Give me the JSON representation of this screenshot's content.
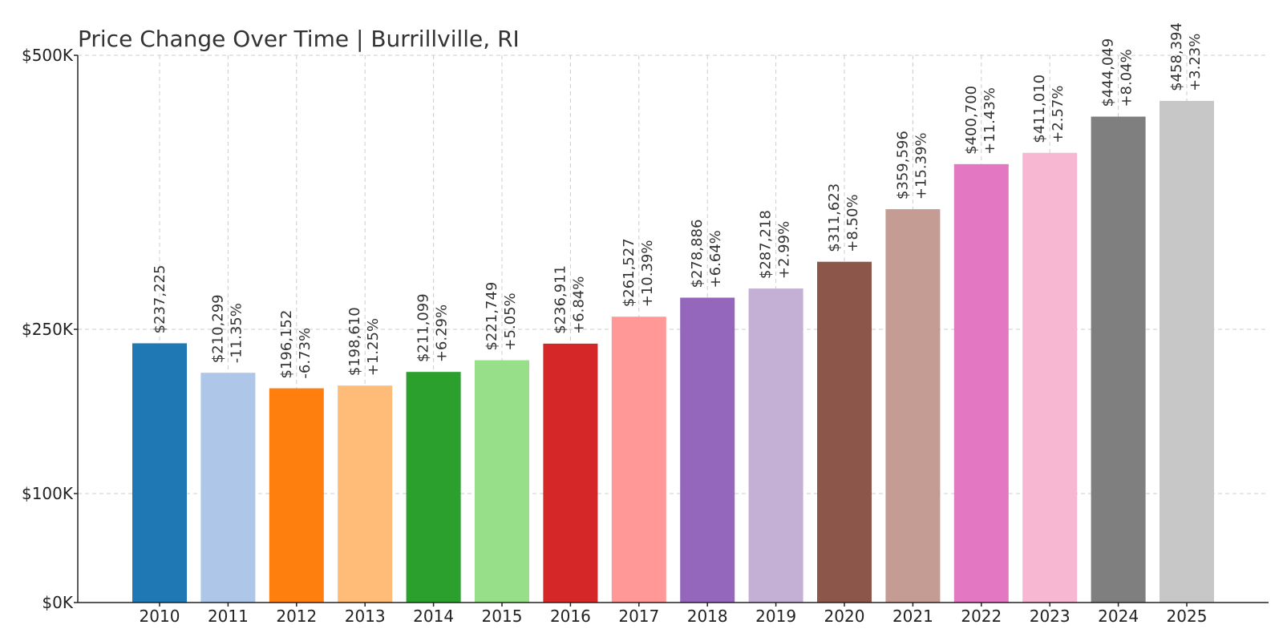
{
  "chart_data": {
    "type": "bar",
    "title": "Price Change Over Time | Burrillville, RI",
    "xlabel": "",
    "ylabel": "",
    "categories": [
      "2010",
      "2011",
      "2012",
      "2013",
      "2014",
      "2015",
      "2016",
      "2017",
      "2018",
      "2019",
      "2020",
      "2021",
      "2022",
      "2023",
      "2024",
      "2025"
    ],
    "values": [
      237225,
      210299,
      196152,
      198610,
      211099,
      221749,
      236911,
      261527,
      278886,
      287218,
      311623,
      359596,
      400700,
      411010,
      444049,
      458394
    ],
    "value_labels": [
      "$237,225",
      "$210,299",
      "$196,152",
      "$198,610",
      "$211,099",
      "$221,749",
      "$236,911",
      "$261,527",
      "$278,886",
      "$287,218",
      "$311,623",
      "$359,596",
      "$400,700",
      "$411,010",
      "$444,049",
      "$458,394"
    ],
    "change_labels": [
      "",
      "-11.35%",
      "-6.73%",
      "+1.25%",
      "+6.29%",
      "+5.05%",
      "+6.84%",
      "+10.39%",
      "+6.64%",
      "+2.99%",
      "+8.50%",
      "+15.39%",
      "+11.43%",
      "+2.57%",
      "+8.04%",
      "+3.23%"
    ],
    "colors": [
      "#1f77b4",
      "#aec7e8",
      "#ff7f0e",
      "#ffbb78",
      "#2ca02c",
      "#98df8a",
      "#d62728",
      "#ff9896",
      "#9467bd",
      "#c5b0d5",
      "#8c564b",
      "#c49c94",
      "#e377c2",
      "#f7b6d2",
      "#7f7f7f",
      "#c7c7c7"
    ],
    "y_scale": "piecewise-linear",
    "y_ticks": [
      {
        "value": 0,
        "label": "$0K"
      },
      {
        "value": 100000,
        "label": "$100K"
      },
      {
        "value": 250000,
        "label": "$250K"
      },
      {
        "value": 500000,
        "label": "$500K"
      }
    ],
    "ylim": [
      0,
      500000
    ],
    "grid": true,
    "legend": "none"
  }
}
